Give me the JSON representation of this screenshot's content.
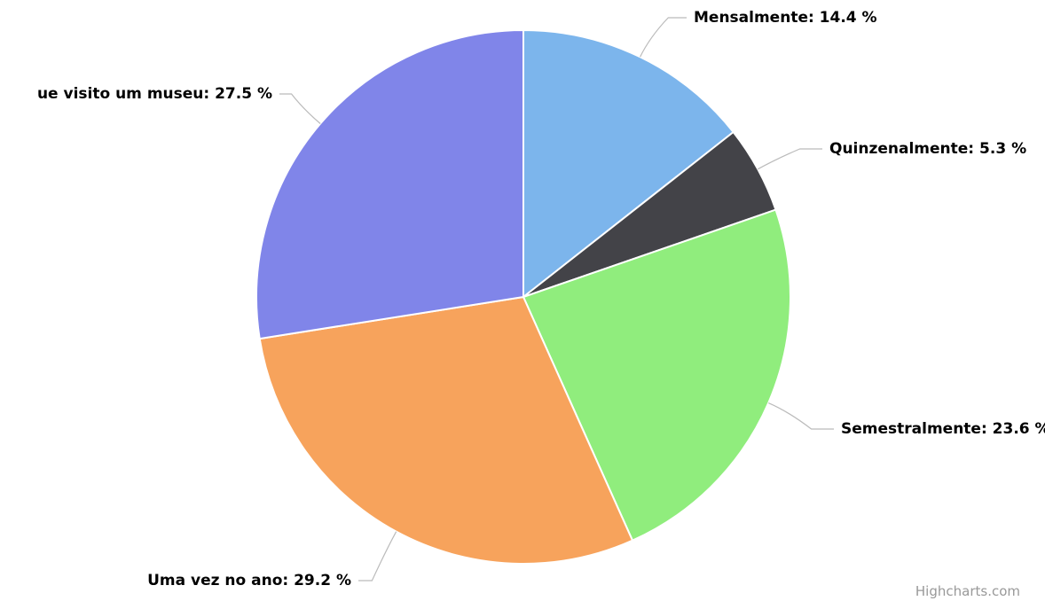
{
  "chart_data": {
    "type": "pie",
    "labels": [
      "Mensalmente: 14.4 %",
      "Quinzenalmente: 5.3 %",
      "Semestralmente: 23.6 %",
      "Uma vez no ano: 29.2 %",
      "ue visito um museu: 27.5 %"
    ],
    "values": [
      14.4,
      5.3,
      23.6,
      29.2,
      27.5
    ],
    "colors": [
      "#7cb5ec",
      "#434348",
      "#90ed7d",
      "#f7a35c",
      "#8085e9"
    ],
    "credits": "Highcharts.com"
  }
}
